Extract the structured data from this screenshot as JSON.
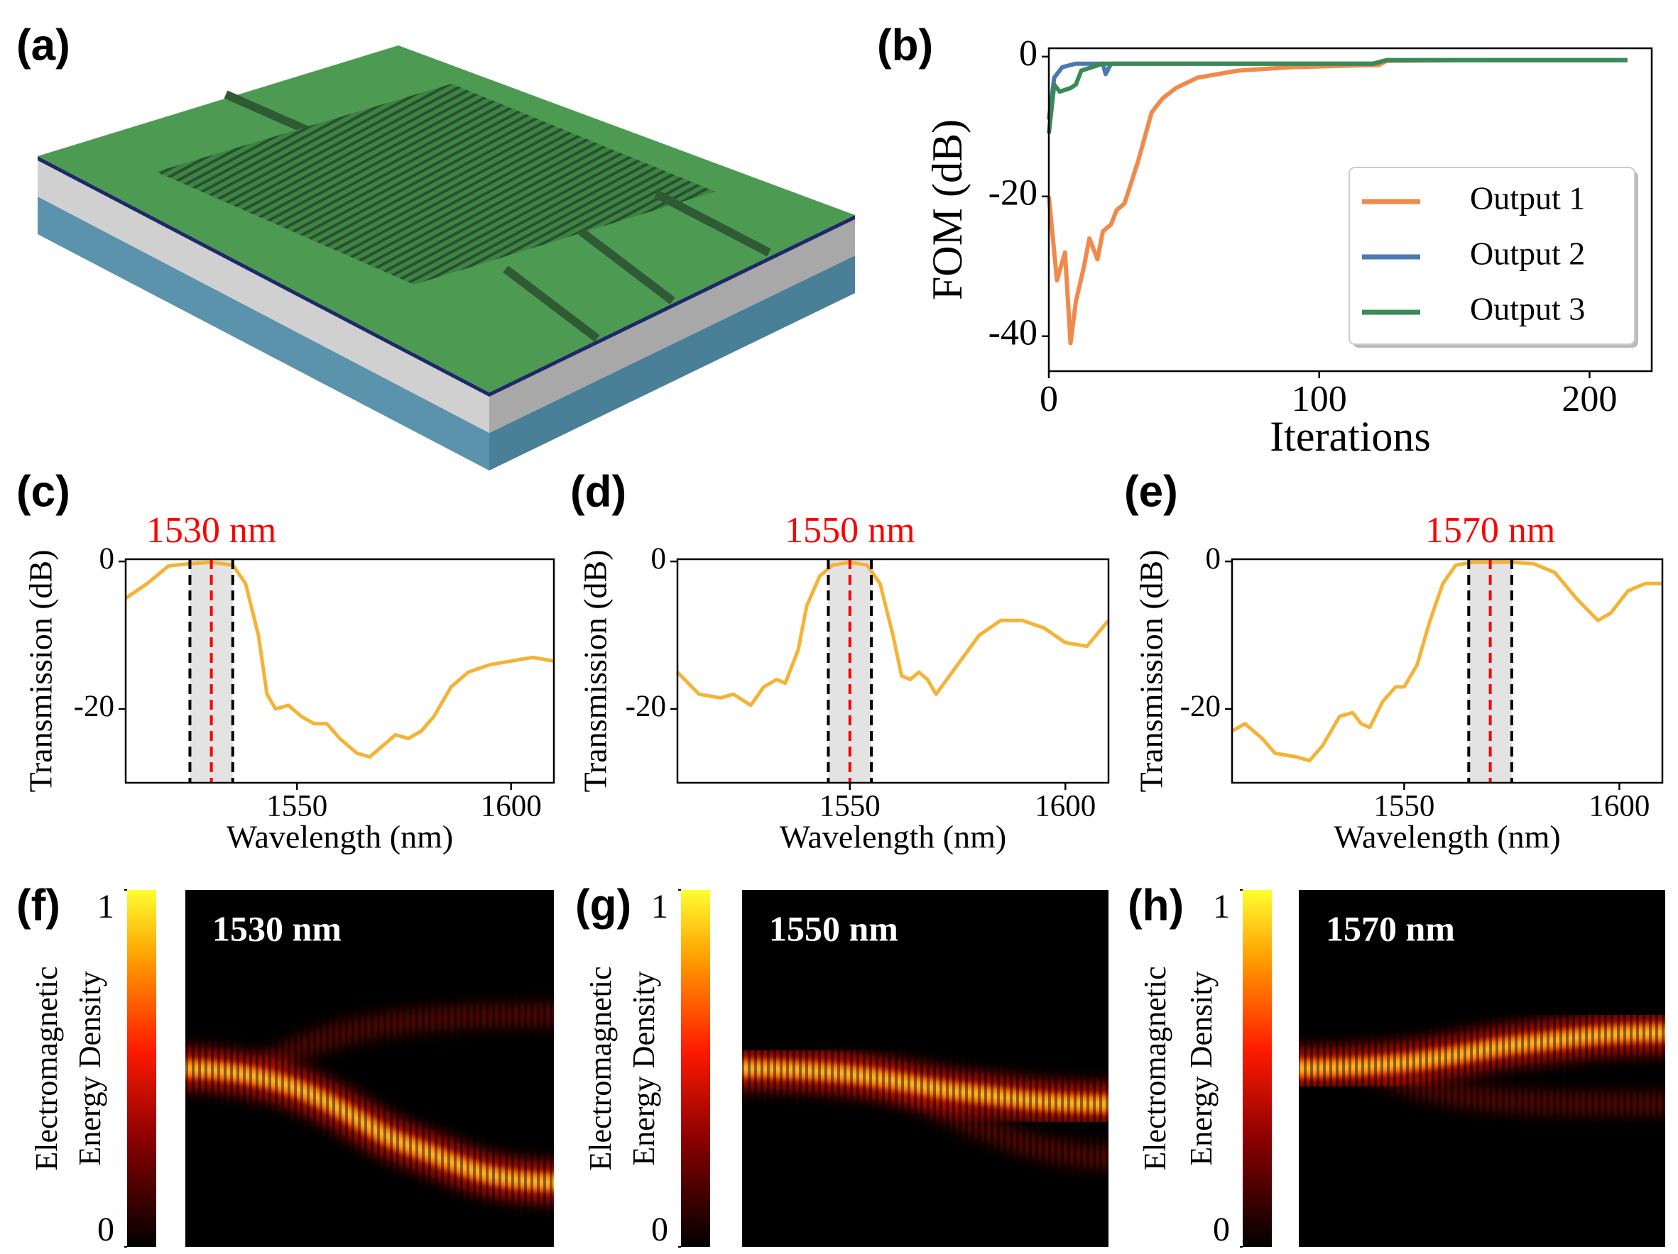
{
  "chart_data": [
    {
      "type": "illustration",
      "panel_label": "(a)"
    },
    {
      "type": "line",
      "panel_label": "(b)",
      "xlabel": "Iterations",
      "ylabel": "FOM (dB)",
      "xlim": [
        0,
        223
      ],
      "ylim": [
        -45,
        1.2
      ],
      "xticks": [
        0,
        100,
        200
      ],
      "yticks": [
        0,
        -20,
        -40
      ],
      "legend": "lower right",
      "grid": false,
      "series": [
        {
          "name": "Output 1",
          "color": "#f08a4b",
          "x": [
            0,
            3,
            6,
            8,
            10,
            13,
            15,
            18,
            20,
            23,
            25,
            28,
            33,
            38,
            42,
            47,
            55,
            70,
            90,
            110,
            122,
            125,
            160,
            214
          ],
          "values": [
            -20,
            -32,
            -28,
            -41,
            -35,
            -30,
            -26,
            -29,
            -25,
            -24,
            -22,
            -21,
            -15,
            -8,
            -6,
            -4.5,
            -3,
            -2,
            -1.5,
            -1.3,
            -1.2,
            -0.6,
            -0.5,
            -0.5
          ]
        },
        {
          "name": "Output 2",
          "color": "#4a7ab0",
          "x": [
            0,
            2,
            5,
            8,
            10,
            20,
            21,
            23,
            60,
            120,
            125,
            214
          ],
          "values": [
            -9,
            -3,
            -1.5,
            -1.2,
            -1,
            -1,
            -2.5,
            -1,
            -1,
            -1,
            -0.5,
            -0.5
          ]
        },
        {
          "name": "Output 3",
          "color": "#3a8a55",
          "x": [
            0,
            2,
            4,
            8,
            10,
            12,
            16,
            20,
            60,
            120,
            125,
            214
          ],
          "values": [
            -11,
            -4,
            -5,
            -4.5,
            -4,
            -2,
            -1.5,
            -1,
            -1,
            -1,
            -0.5,
            -0.5
          ]
        }
      ]
    },
    {
      "type": "line",
      "panel_label": "(c)",
      "title": "1530 nm",
      "title_color": "#ff0000",
      "xlabel": "Wavelength (nm)",
      "ylabel": "Transmission (dB)",
      "xlim": [
        1510,
        1610
      ],
      "ylim": [
        -30,
        0.3
      ],
      "xticks": [
        1550,
        1600
      ],
      "yticks": [
        0,
        -20
      ],
      "center_line": 1530,
      "center_color": "#ff0000",
      "band": [
        1525,
        1535
      ],
      "color": "#f5b335",
      "x": [
        1510,
        1515,
        1520,
        1525,
        1530,
        1535,
        1538,
        1541,
        1543,
        1545,
        1548,
        1551,
        1554,
        1557,
        1560,
        1564,
        1567,
        1570,
        1573,
        1576,
        1579,
        1582,
        1586,
        1590,
        1595,
        1600,
        1605,
        1610
      ],
      "values": [
        -5,
        -3,
        -0.6,
        -0.3,
        -0.1,
        -0.5,
        -3,
        -10,
        -18,
        -20,
        -19.5,
        -21,
        -22,
        -22,
        -24,
        -26,
        -26.5,
        -25,
        -23.5,
        -24,
        -23,
        -21,
        -17,
        -15,
        -14,
        -13.5,
        -13,
        -13.5
      ]
    },
    {
      "type": "line",
      "panel_label": "(d)",
      "title": "1550 nm",
      "title_color": "#ff0000",
      "xlabel": "Wavelength (nm)",
      "ylabel": "Transmission (dB)",
      "xlim": [
        1510,
        1610
      ],
      "ylim": [
        -30,
        0.3
      ],
      "xticks": [
        1550,
        1600
      ],
      "yticks": [
        0,
        -20
      ],
      "center_line": 1550,
      "center_color": "#ff0000",
      "band": [
        1545,
        1555
      ],
      "color": "#f5b335",
      "x": [
        1510,
        1515,
        1520,
        1523,
        1527,
        1530,
        1533,
        1535,
        1538,
        1540,
        1543,
        1546,
        1550,
        1554,
        1557,
        1560,
        1562,
        1564,
        1566,
        1568,
        1570,
        1575,
        1580,
        1585,
        1590,
        1595,
        1600,
        1605,
        1610
      ],
      "values": [
        -15,
        -18,
        -18.5,
        -18,
        -19.5,
        -17,
        -16,
        -16.5,
        -12,
        -6,
        -2,
        -0.5,
        -0.1,
        -0.5,
        -3,
        -10,
        -15.5,
        -16,
        -15,
        -16,
        -18,
        -14,
        -10,
        -8,
        -8,
        -9,
        -11,
        -11.5,
        -8
      ]
    },
    {
      "type": "line",
      "panel_label": "(e)",
      "title": "1570 nm",
      "title_color": "#ff0000",
      "xlabel": "Wavelength (nm)",
      "ylabel": "Transmission (dB)",
      "xlim": [
        1510,
        1610
      ],
      "ylim": [
        -30,
        0.3
      ],
      "xticks": [
        1550,
        1600
      ],
      "yticks": [
        0,
        -20
      ],
      "center_line": 1570,
      "center_color": "#ff0000",
      "band": [
        1565,
        1575
      ],
      "color": "#f5b335",
      "x": [
        1510,
        1513,
        1517,
        1520,
        1525,
        1528,
        1531,
        1535,
        1538,
        1540,
        1542,
        1545,
        1548,
        1550,
        1553,
        1556,
        1559,
        1562,
        1566,
        1570,
        1575,
        1580,
        1585,
        1590,
        1595,
        1598,
        1602,
        1606,
        1610
      ],
      "values": [
        -23,
        -22,
        -24,
        -26,
        -26.5,
        -27,
        -25,
        -21,
        -20.5,
        -22,
        -22.5,
        -19,
        -17,
        -17,
        -14,
        -8,
        -3,
        -0.5,
        -0.1,
        -0.1,
        -0.1,
        -0.3,
        -1.5,
        -5,
        -8,
        -7,
        -4,
        -3,
        -3
      ]
    },
    {
      "type": "heatmap",
      "panel_label": "(f)",
      "annotation": "1530 nm",
      "clim": [
        0,
        1
      ],
      "colorbar_ticks": [
        0,
        1
      ],
      "colorbar_label": [
        "Electromagnetic",
        "Energy Density"
      ]
    },
    {
      "type": "heatmap",
      "panel_label": "(g)",
      "annotation": "1550 nm",
      "clim": [
        0,
        1
      ],
      "colorbar_ticks": [
        0,
        1
      ],
      "colorbar_label": [
        "Electromagnetic",
        "Energy Density"
      ]
    },
    {
      "type": "heatmap",
      "panel_label": "(h)",
      "annotation": "1570 nm",
      "clim": [
        0,
        1
      ],
      "colorbar_ticks": [
        0,
        1
      ],
      "colorbar_label": [
        "Electromagnetic",
        "Energy Density"
      ]
    }
  ]
}
